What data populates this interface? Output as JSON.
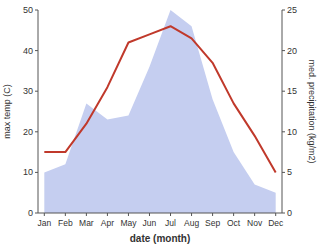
{
  "chart_data": {
    "type": "line",
    "categories": [
      "Jan",
      "Feb",
      "Mar",
      "Apr",
      "May",
      "Jun",
      "Jul",
      "Aug",
      "Sep",
      "Oct",
      "Nov",
      "Dec"
    ],
    "xlabel": "date (month)",
    "ylabel": "max temp (C)",
    "y2label": "med. precipitation (kg/m2)",
    "ylim": [
      0,
      50
    ],
    "yticks": [
      0,
      10,
      20,
      30,
      40,
      50
    ],
    "y2lim": [
      0,
      25
    ],
    "y2ticks": [
      0,
      5,
      10,
      15,
      20,
      25
    ],
    "grid": false,
    "series": [
      {
        "type": "area",
        "color": "#c5cef0",
        "values": [
          10,
          12,
          27,
          23,
          24,
          36,
          50,
          46,
          28,
          15,
          7,
          5
        ]
      },
      {
        "type": "line",
        "color": "#c0392b",
        "values": [
          15,
          15,
          22,
          31,
          42,
          44,
          46,
          43,
          37,
          27,
          19,
          10
        ]
      }
    ]
  }
}
